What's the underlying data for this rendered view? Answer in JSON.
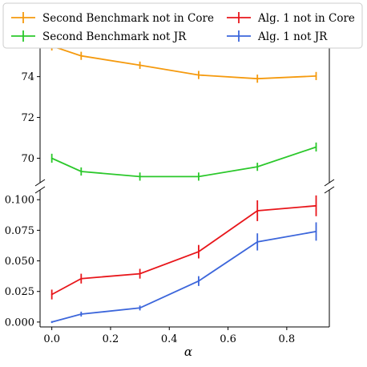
{
  "chart_data": {
    "type": "line",
    "xlabel": "α",
    "x": [
      0.0,
      0.1,
      0.3,
      0.5,
      0.7,
      0.9
    ],
    "legend_placement": "top",
    "panels": [
      {
        "ylim": [
          68.8,
          75.4
        ],
        "yticks": [
          "70",
          "72",
          "74"
        ],
        "series": [
          {
            "name": "Second Benchmark not in Core",
            "color": "#f59a0e",
            "values": [
              75.5,
              75.02,
              74.56,
              74.08,
              73.9,
              74.03
            ],
            "err": [
              0.22,
              0.2,
              0.18,
              0.2,
              0.2,
              0.2
            ]
          },
          {
            "name": "Second Benchmark not JR",
            "color": "#2bc82b",
            "values": [
              70.0,
              69.35,
              69.1,
              69.1,
              69.58,
              70.55
            ],
            "err": [
              0.22,
              0.2,
              0.2,
              0.2,
              0.2,
              0.22
            ]
          }
        ]
      },
      {
        "ylim": [
          -0.004,
          0.108
        ],
        "yticks": [
          "0.000",
          "0.025",
          "0.050",
          "0.075",
          "0.100"
        ],
        "series": [
          {
            "name": "Alg. 1 not in Core",
            "color": "#e8161b",
            "values": [
              0.0225,
              0.0355,
              0.0395,
              0.0575,
              0.091,
              0.095
            ],
            "err": [
              0.004,
              0.004,
              0.004,
              0.0055,
              0.0085,
              0.0085
            ]
          },
          {
            "name": "Alg. 1 not JR",
            "color": "#3c66db",
            "values": [
              0.0,
              0.0065,
              0.0115,
              0.0335,
              0.0655,
              0.074
            ],
            "err": [
              0.0008,
              0.002,
              0.002,
              0.004,
              0.007,
              0.0075
            ]
          }
        ]
      }
    ],
    "xticks": [
      "0.0",
      "0.2",
      "0.4",
      "0.6",
      "0.8"
    ],
    "xtick_values": [
      0.0,
      0.2,
      0.4,
      0.6,
      0.8
    ]
  }
}
